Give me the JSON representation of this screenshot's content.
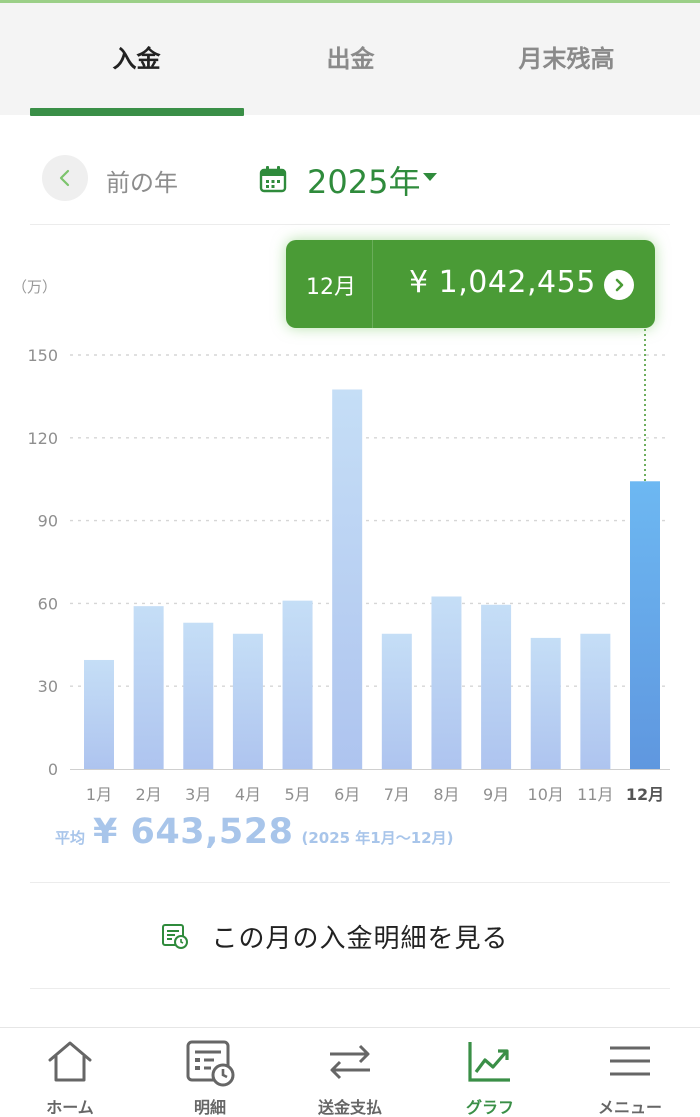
{
  "tabs": [
    {
      "label": "入金",
      "active": true
    },
    {
      "label": "出金",
      "active": false
    },
    {
      "label": "月末残高",
      "active": false
    }
  ],
  "year_nav": {
    "prev_label": "前の年",
    "year_label": "2025年"
  },
  "chart_data": {
    "type": "bar",
    "unit_label": "（万）",
    "categories": [
      "1月",
      "2月",
      "3月",
      "4月",
      "5月",
      "6月",
      "7月",
      "8月",
      "9月",
      "10月",
      "11月",
      "12月"
    ],
    "values": [
      39.5,
      59,
      53,
      49,
      61,
      137.5,
      49,
      62.5,
      59.5,
      47.5,
      49,
      104.2455
    ],
    "ylim": [
      0,
      150
    ],
    "yticks": [
      0,
      30,
      60,
      90,
      120,
      150
    ],
    "ytick_labels": [
      "0",
      "30",
      "60",
      "90",
      "120",
      "150"
    ],
    "selected_index": 11,
    "grid": true,
    "colors": {
      "bar_top": "#c5def6",
      "bar_bottom": "#aec4ef",
      "selected_top": "#6db8f2",
      "selected_bottom": "#5f97df",
      "grid": "#d6d6d6",
      "tick": "#8f8f8f",
      "guide": "#4a9b36"
    }
  },
  "tooltip": {
    "month": "12月",
    "amount": "¥ 1,042,455"
  },
  "average": {
    "label": "平均",
    "value": "¥ 643,528",
    "range": "(2025 年1月〜12月)"
  },
  "detail_link": {
    "label": "この月の入金明細を見る"
  },
  "bottom_nav": [
    {
      "label": "ホーム",
      "icon": "home-icon",
      "active": false
    },
    {
      "label": "明細",
      "icon": "statement-icon",
      "active": false
    },
    {
      "label": "送金支払",
      "icon": "transfer-icon",
      "active": false
    },
    {
      "label": "グラフ",
      "icon": "graph-icon",
      "active": true
    },
    {
      "label": "メニュー",
      "icon": "menu-icon",
      "active": false
    }
  ],
  "accent_color": "#3a8f47"
}
